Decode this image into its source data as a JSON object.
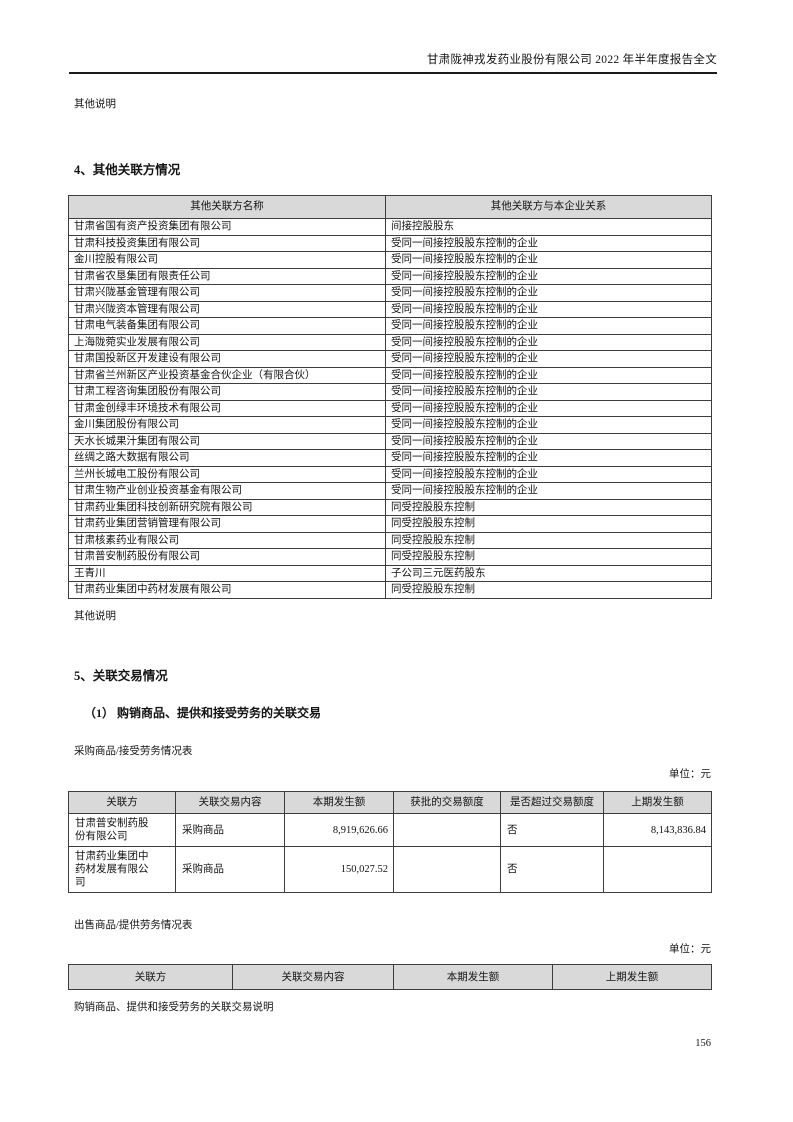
{
  "document": {
    "header_title": "甘肃陇神戎发药业股份有限公司 2022 年半年度报告全文",
    "page_number": "156"
  },
  "section4": {
    "note_above": "其他说明",
    "title": "4、其他关联方情况",
    "note_below": "其他说明",
    "related_party_table": {
      "headers": [
        "其他关联方名称",
        "其他关联方与本企业关系"
      ],
      "rows": [
        [
          "甘肃省国有资产投资集团有限公司",
          "间接控股股东"
        ],
        [
          "甘肃科技投资集团有限公司",
          "受同一间接控股股东控制的企业"
        ],
        [
          "金川控股有限公司",
          "受同一间接控股股东控制的企业"
        ],
        [
          "甘肃省农垦集团有限责任公司",
          "受同一间接控股股东控制的企业"
        ],
        [
          "甘肃兴陇基金管理有限公司",
          "受同一间接控股股东控制的企业"
        ],
        [
          "甘肃兴陇资本管理有限公司",
          "受同一间接控股股东控制的企业"
        ],
        [
          "甘肃电气装备集团有限公司",
          "受同一间接控股股东控制的企业"
        ],
        [
          "上海陇菀实业发展有限公司",
          "受同一间接控股股东控制的企业"
        ],
        [
          "甘肃国投新区开发建设有限公司",
          "受同一间接控股股东控制的企业"
        ],
        [
          "甘肃省兰州新区产业投资基金合伙企业（有限合伙）",
          "受同一间接控股股东控制的企业"
        ],
        [
          "甘肃工程咨询集团股份有限公司",
          "受同一间接控股股东控制的企业"
        ],
        [
          "甘肃金创绿丰环境技术有限公司",
          "受同一间接控股股东控制的企业"
        ],
        [
          "金川集团股份有限公司",
          "受同一间接控股股东控制的企业"
        ],
        [
          "天水长城果汁集团有限公司",
          "受同一间接控股股东控制的企业"
        ],
        [
          "丝绸之路大数据有限公司",
          "受同一间接控股股东控制的企业"
        ],
        [
          "兰州长城电工股份有限公司",
          "受同一间接控股股东控制的企业"
        ],
        [
          "甘肃生物产业创业投资基金有限公司",
          "受同一间接控股股东控制的企业"
        ],
        [
          "甘肃药业集团科技创新研究院有限公司",
          "同受控股股东控制"
        ],
        [
          "甘肃药业集团营销管理有限公司",
          "同受控股股东控制"
        ],
        [
          "甘肃核素药业有限公司",
          "同受控股股东控制"
        ],
        [
          "甘肃普安制药股份有限公司",
          "同受控股股东控制"
        ],
        [
          "王青川",
          "子公司三元医药股东"
        ],
        [
          "甘肃药业集团中药材发展有限公司",
          "同受控股股东控制"
        ]
      ]
    }
  },
  "section5": {
    "title": "5、关联交易情况",
    "subsection_title": "（1）  购销商品、提供和接受劳务的关联交易",
    "purchase_caption": "采购商品/接受劳务情况表",
    "purchase_unit": "单位：元",
    "purchase_table": {
      "headers": [
        "关联方",
        "关联交易内容",
        "本期发生额",
        "获批的交易额度",
        "是否超过交易额度",
        "上期发生额"
      ],
      "rows": [
        [
          "甘肃普安制药股份有限公司",
          "采购商品",
          "8,919,626.66",
          "",
          "否",
          "8,143,836.84"
        ],
        [
          "甘肃药业集团中药材发展有限公司",
          "采购商品",
          "150,027.52",
          "",
          "否",
          ""
        ]
      ]
    },
    "sales_caption": "出售商品/提供劳务情况表",
    "sales_unit": "单位：元",
    "sales_table": {
      "headers": [
        "关联方",
        "关联交易内容",
        "本期发生额",
        "上期发生额"
      ],
      "rows": []
    },
    "trailing_note": "购销商品、提供和接受劳务的关联交易说明"
  }
}
